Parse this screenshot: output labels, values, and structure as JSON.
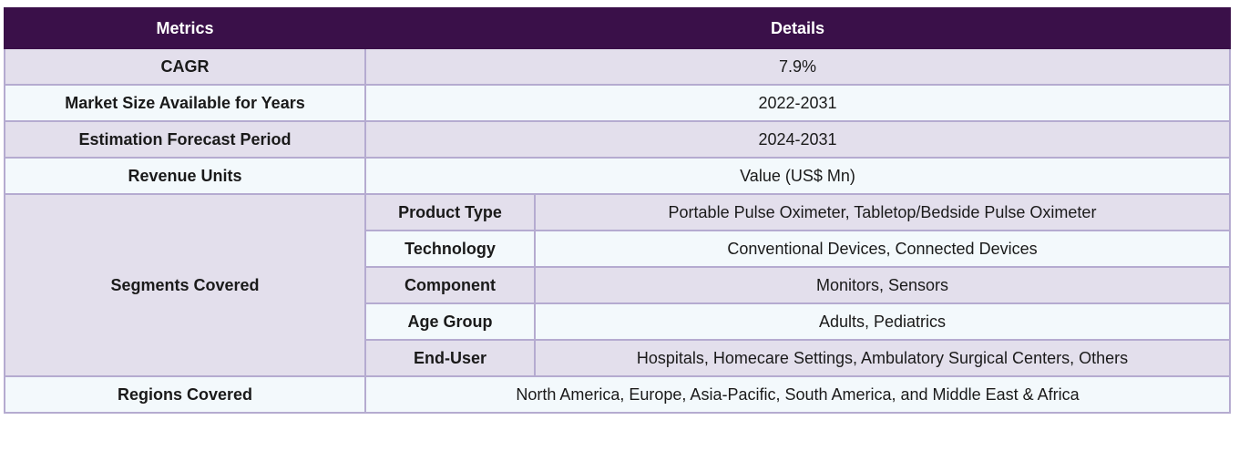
{
  "header": {
    "metrics": "Metrics",
    "details": "Details"
  },
  "rows": [
    {
      "metric": "CAGR",
      "detail": "7.9%"
    },
    {
      "metric": "Market Size Available for Years",
      "detail": "2022-2031"
    },
    {
      "metric": "Estimation Forecast Period",
      "detail": "2024-2031"
    },
    {
      "metric": "Revenue Units",
      "detail": "Value (US$ Mn)"
    }
  ],
  "segments": {
    "label": "Segments Covered",
    "items": [
      {
        "name": "Product Type",
        "value": "Portable Pulse Oximeter, Tabletop/Bedside Pulse Oximeter"
      },
      {
        "name": "Technology",
        "value": "Conventional Devices, Connected Devices"
      },
      {
        "name": "Component",
        "value": "Monitors, Sensors"
      },
      {
        "name": "Age Group",
        "value": "Adults, Pediatrics"
      },
      {
        "name": "End-User",
        "value": "Hospitals, Homecare Settings, Ambulatory Surgical Centers, Others"
      }
    ]
  },
  "regions": {
    "label": "Regions Covered",
    "value": "North America, Europe, Asia-Pacific, South America, and Middle East & Africa"
  }
}
